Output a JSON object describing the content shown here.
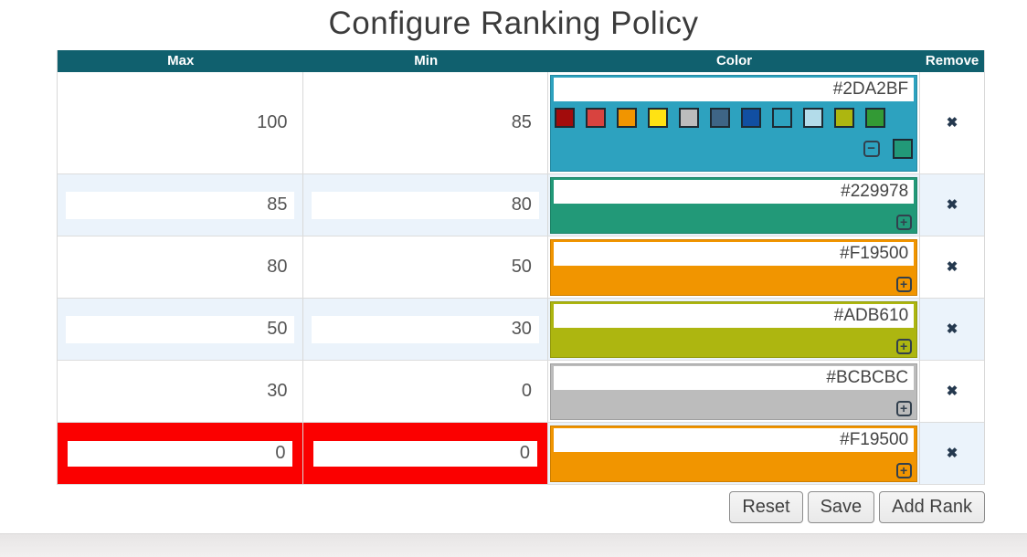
{
  "title": "Configure Ranking Policy",
  "table": {
    "headers": {
      "max": "Max",
      "min": "Min",
      "color": "Color",
      "remove": "Remove"
    },
    "rows": [
      {
        "max": "100",
        "min": "85",
        "color": "#2DA2BF"
      },
      {
        "max": "85",
        "min": "80",
        "color": "#229978"
      },
      {
        "max": "80",
        "min": "50",
        "color": "#F19500"
      },
      {
        "max": "50",
        "min": "30",
        "color": "#ADB610"
      },
      {
        "max": "30",
        "min": "0",
        "color": "#BCBCBC"
      },
      {
        "max": "0",
        "min": "0",
        "color": "#F19500"
      }
    ]
  },
  "palette": {
    "swatches": [
      "#A20C0C",
      "#D8433F",
      "#F19500",
      "#FFE213",
      "#BCBCBC",
      "#3E6586",
      "#114FA2",
      "#2DA2BF",
      "#B3DCEA",
      "#ADB610",
      "#339A35",
      "#229978"
    ],
    "collapse_label": "−",
    "expand_label": "+"
  },
  "buttons": {
    "reset": "Reset",
    "save": "Save",
    "add_rank": "Add Rank"
  },
  "icons": {
    "remove": "✖"
  },
  "colors": {
    "header_bg": "#10606E",
    "stripe": "#EBF3FB",
    "error": "#FB0000"
  }
}
